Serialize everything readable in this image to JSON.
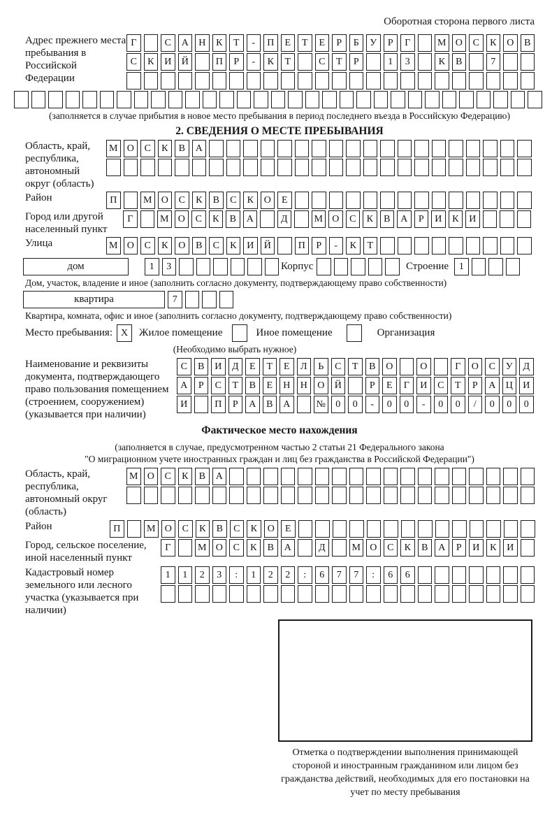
{
  "page": {
    "side_note": "Оборотная сторона первого листа"
  },
  "prev_address": {
    "label": "Адрес прежнего места пребывания в Российской Федерации",
    "rows": [
      "Г САНКТ-ПЕТЕРБУРГ МОСКОВ",
      "СКИЙ ПР-КТ СТР 13 КВ 7  ",
      "                        ",
      "                               "
    ],
    "note": "(заполняется в случае прибытия в новое место пребывания в период последнего въезда в Российскую Федерацию)"
  },
  "section2": {
    "title": "2. СВЕДЕНИЯ О МЕСТЕ ПРЕБЫВАНИЯ",
    "region": {
      "label": "Область, край, республика, автономный округ (область)",
      "rows": [
        "МОСКВА                   ",
        "                         "
      ]
    },
    "district": {
      "label": "Район",
      "cells": "П МОСКВСКОЕ              "
    },
    "city": {
      "label": "Город или другой населенный пункт",
      "cells": "Г МОСКВА Д МОСКВАРИКИ   "
    },
    "street": {
      "label": "Улица",
      "cells": "МОСКОВСКИЙ ПР-КТ         "
    },
    "house": {
      "label": "дом",
      "cells": "13      ",
      "korpus_label": "Корпус",
      "korpus_cells": "     ",
      "stroenie_label": "Строение",
      "stroenie_cells": "1   "
    },
    "house_note": "Дом, участок, владение и иное (заполнить согласно документу, подтверждающему право собственности)",
    "apartment": {
      "label": "квартира",
      "cells": "7   "
    },
    "apartment_note": "Квартира, комната, офис и иное (заполнить согласно документу, подтверждающему право собственности)",
    "stay": {
      "label": "Место пребывания:",
      "options": [
        {
          "label": "Жилое помещение",
          "mark": "X"
        },
        {
          "label": "Иное помещение",
          "mark": ""
        },
        {
          "label": "Организация",
          "mark": ""
        }
      ],
      "note": "(Необходимо выбрать нужное)"
    },
    "doc": {
      "label": "Наименование и реквизиты документа, подтверждающего право пользования помещением (строением, сооружением) (указывается при наличии)",
      "rows": [
        "СВИДЕТЕЛЬСТВО О ГОСУД",
        "АРСТВЕННОЙ РЕГИСТРАЦИ",
        "И ПРАВА №00-00-00/000"
      ]
    }
  },
  "actual_location": {
    "title": "Фактическое место нахождения",
    "note_line1": "(заполняется в случае, предусмотренном частью 2 статьи 21 Федерального закона",
    "note_line2": "\"О миграционном учете иностранных граждан и лиц без гражданства в Российской Федерации\")",
    "region": {
      "label": "Область, край, республика, автономный округ (область)",
      "rows": [
        "МОСКВА                  ",
        "                        "
      ]
    },
    "district": {
      "label": "Район",
      "cells": "П МОСКВСКОЕ              "
    },
    "city": {
      "label": "Город, сельское поселение, иной населенный пункт",
      "cells": "Г МОСКВА Д МОСКВАРИКИ "
    },
    "cadastre": {
      "label": "Кадастровый номер земельного или лесного участка (указывается при наличии)",
      "rows": [
        "1123:122:677:66       ",
        "                      "
      ]
    }
  },
  "stamp": {
    "caption": "Отметка о подтверждении выполнения принимающей стороной и иностранным гражданином или лицом без гражданства действий, необходимых для его постановки на учет по месту пребывания"
  }
}
